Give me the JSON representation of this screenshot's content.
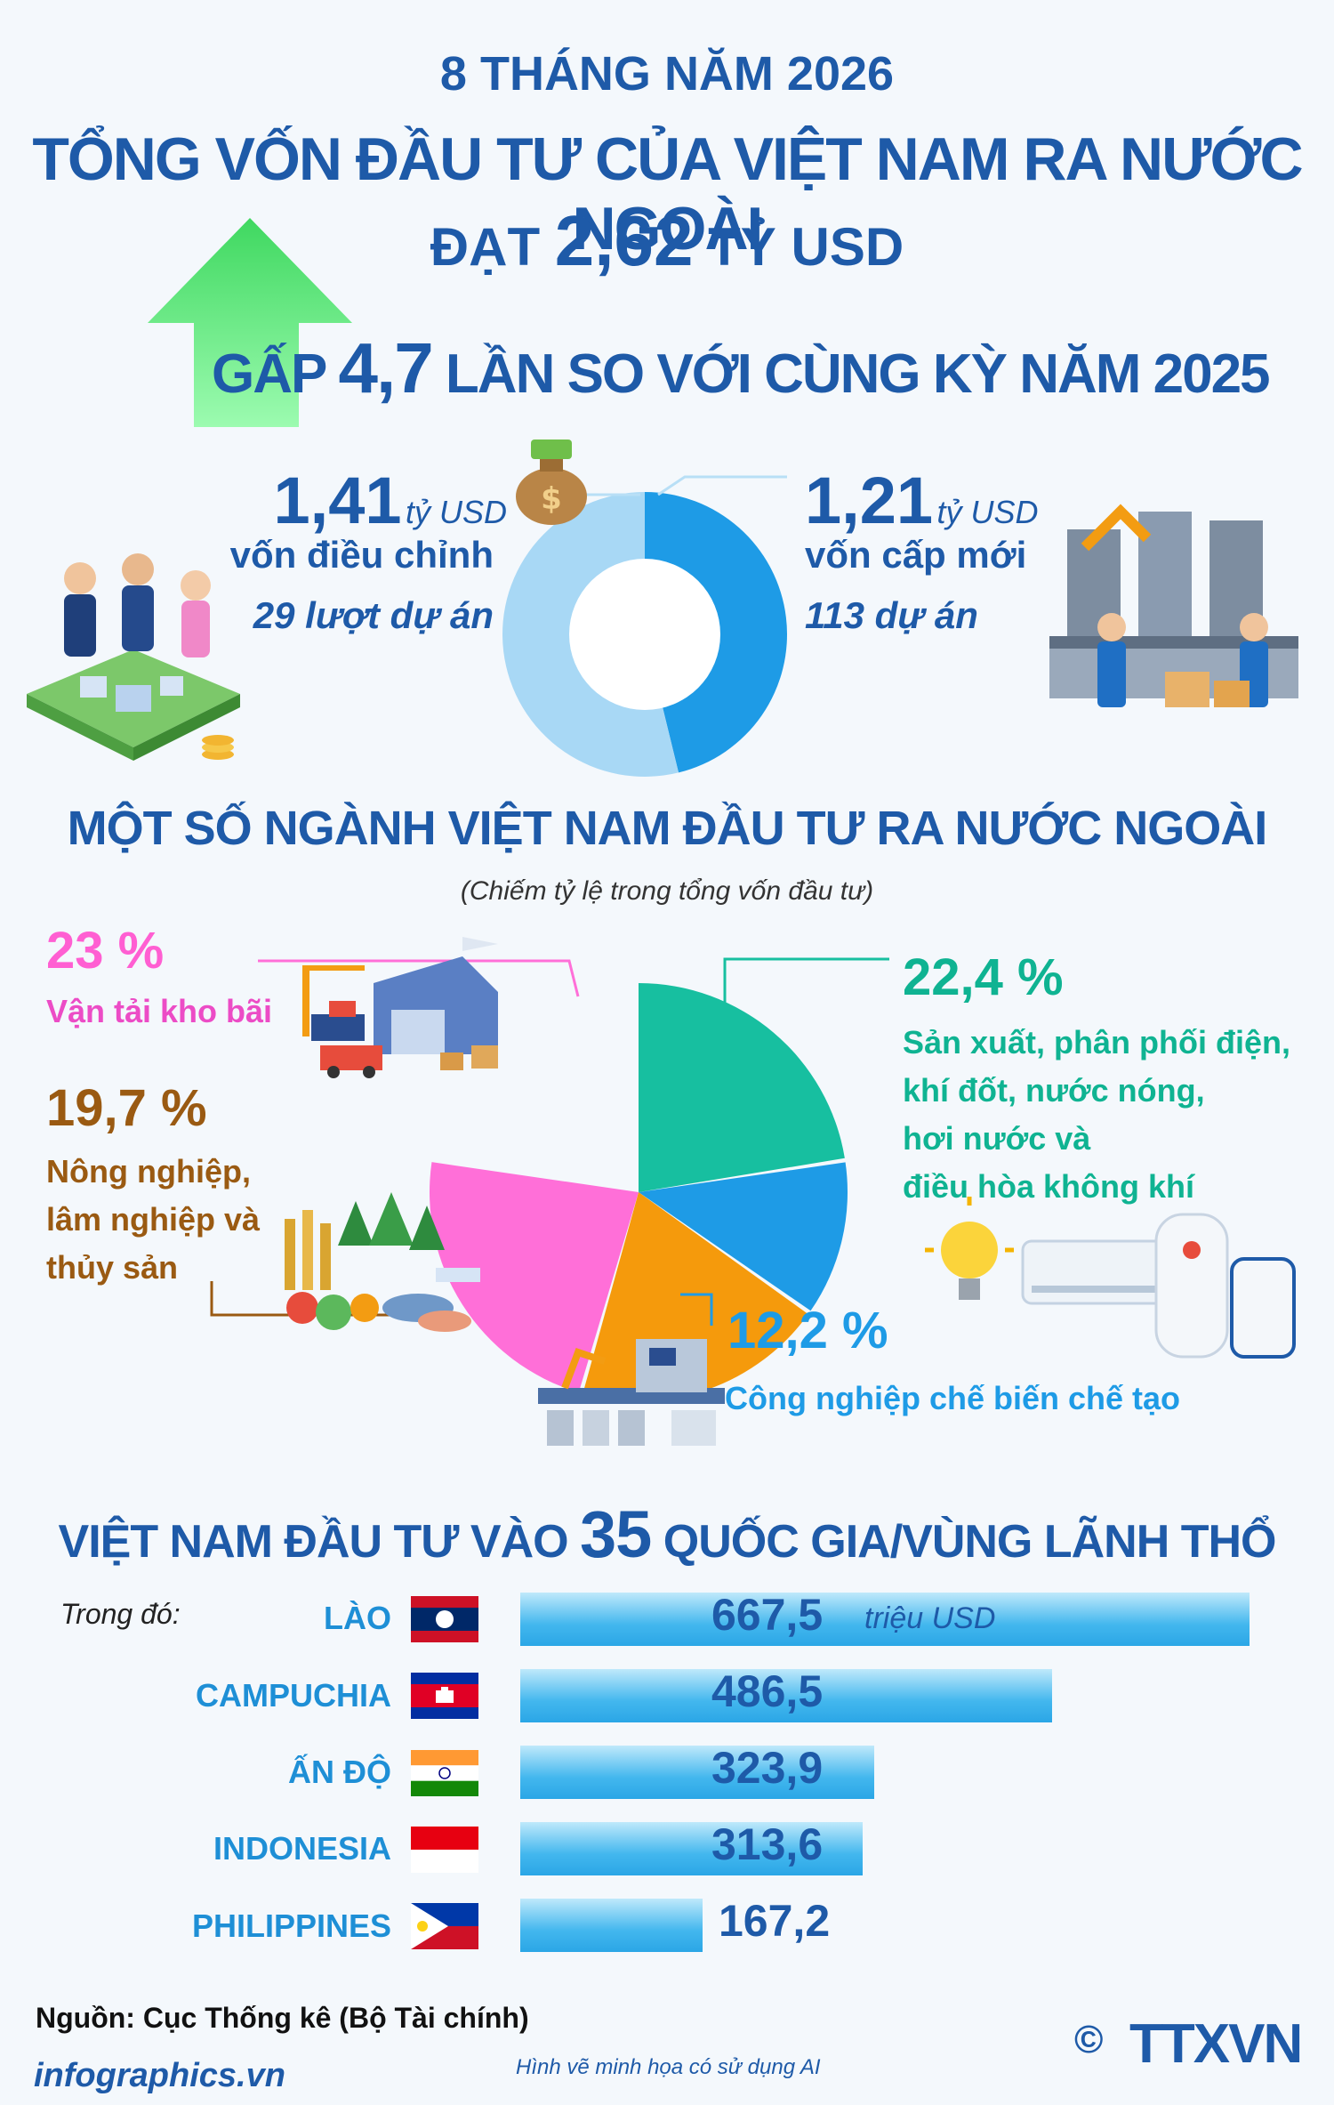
{
  "header": {
    "period": "8 THÁNG NĂM 2026",
    "title": "TỔNG VỐN ĐẦU TƯ CỦA VIỆT NAM RA NƯỚC NGOÀI",
    "total_prefix": "ĐẠT",
    "total_value": "2,62",
    "total_unit": "TỶ USD",
    "compare_prefix": "GẤP",
    "compare_value": "4,7",
    "compare_suffix": "LẦN SO VỚI CÙNG KỲ NĂM 2025"
  },
  "split": {
    "adjusted": {
      "value": "1,41",
      "unit": "tỷ USD",
      "label": "vốn điều chỉnh",
      "projects": "29 lượt dự án"
    },
    "new": {
      "value": "1,21",
      "unit": "tỷ USD",
      "label": "vốn cấp mới",
      "projects": "113 dự án"
    }
  },
  "sectors_section": {
    "title": "MỘT SỐ NGÀNH VIỆT NAM ĐẦU TƯ RA NƯỚC NGOÀI",
    "subtitle": "(Chiếm tỷ lệ trong tổng vốn đầu tư)",
    "items": [
      {
        "pct": "23 %",
        "lines": [
          "Vận tải kho bãi"
        ]
      },
      {
        "pct": "19,7 %",
        "lines": [
          "Nông nghiệp,",
          "lâm nghiệp và",
          "thủy sản"
        ]
      },
      {
        "pct": "22,4 %",
        "lines": [
          "Sản xuất, phân phối điện,",
          "khí đốt, nước nóng,",
          "hơi nước và",
          "điều hòa không khí"
        ]
      },
      {
        "pct": "12,2 %",
        "lines": [
          "Công nghiệp chế biến chế tạo"
        ]
      }
    ]
  },
  "countries_section": {
    "title_prefix": "VIỆT NAM ĐẦU TƯ VÀO",
    "title_number": "35",
    "title_suffix": "QUỐC GIA/VÙNG LÃNH THỔ",
    "intro": "Trong đó:",
    "unit": "triệu USD",
    "rows": [
      {
        "country": "LÀO",
        "value": "667,5"
      },
      {
        "country": "CAMPUCHIA",
        "value": "486,5"
      },
      {
        "country": "ẤN ĐỘ",
        "value": "323,9"
      },
      {
        "country": "INDONESIA",
        "value": "313,6"
      },
      {
        "country": "PHILIPPINES",
        "value": "167,2"
      }
    ]
  },
  "footer": {
    "source": "Nguồn: Cục Thống kê (Bộ Tài chính)",
    "site": "infographics.vn",
    "ai_note": "Hình vẽ minh họa có sử dụng AI",
    "agency": "TTXVN",
    "copyright": "©"
  },
  "colors": {
    "title_blue": "#1e5aa8",
    "arrow_green": "#5ef07a",
    "donut_dark": "#1e9be6",
    "donut_light": "#a8d8f5",
    "transport_pink": "#ff6fd8",
    "agri_orange": "#f59a0c",
    "energy_teal": "#17bfa0",
    "industry_blue": "#1e9be6"
  },
  "chart_data": [
    {
      "type": "pie",
      "variant": "donut",
      "unit": "tỷ USD",
      "categories": [
        "vốn điều chỉnh",
        "vốn cấp mới"
      ],
      "values": [
        1.41,
        1.21
      ]
    },
    {
      "type": "pie",
      "unit": "%",
      "categories": [
        "Vận tải kho bãi",
        "Nông nghiệp, lâm nghiệp và thủy sản",
        "Sản xuất, phân phối điện, khí đốt, nước nóng, hơi nước và điều hòa không khí",
        "Công nghiệp chế biến chế tạo"
      ],
      "values": [
        23,
        19.7,
        22.4,
        12.2
      ]
    },
    {
      "type": "bar",
      "orientation": "horizontal",
      "unit": "triệu USD",
      "categories": [
        "LÀO",
        "CAMPUCHIA",
        "ẤN ĐỘ",
        "INDONESIA",
        "PHILIPPINES"
      ],
      "values": [
        667.5,
        486.5,
        323.9,
        313.6,
        167.2
      ]
    }
  ]
}
